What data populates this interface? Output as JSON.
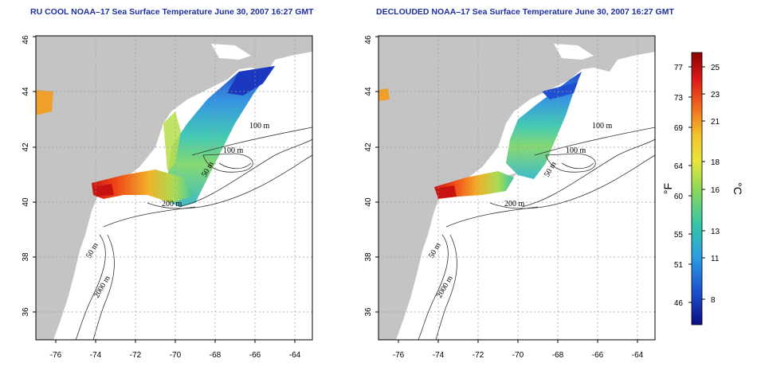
{
  "panels": [
    {
      "title": "RU COOL NOAA–17 Sea Surface Temperature June 30, 2007 16:27 GMT",
      "x_ticks": [
        "-76",
        "-74",
        "-72",
        "-70",
        "-68",
        "-66",
        "-64"
      ],
      "y_ticks": [
        "36",
        "38",
        "40",
        "42",
        "44",
        "46"
      ],
      "contour_labels": [
        "100 m",
        "100 m",
        "50 m",
        "200 m",
        "50 m",
        "2000 m"
      ],
      "variant": "cloud-masked"
    },
    {
      "title": "DECLOUDED NOAA–17 Sea Surface Temperature June 30, 2007 16:27 GMT",
      "x_ticks": [
        "-76",
        "-74",
        "-72",
        "-70",
        "-68",
        "-66",
        "-64"
      ],
      "y_ticks": [
        "36",
        "38",
        "40",
        "42",
        "44",
        "46"
      ],
      "contour_labels": [
        "100 m",
        "100 m",
        "50 m",
        "200 m",
        "50 m",
        "2000 m"
      ],
      "variant": "declouded"
    }
  ],
  "colorbar": {
    "fahrenheit_ticks": [
      "77",
      "73",
      "69",
      "64",
      "60",
      "55",
      "51",
      "46"
    ],
    "celsius_ticks": [
      "25",
      "23",
      "21",
      "18",
      "16",
      "13",
      "11",
      "8"
    ],
    "fahrenheit_label": "°F",
    "celsius_label": "°C",
    "colors": [
      "#8b0000",
      "#dd1a1a",
      "#f06a1e",
      "#f4c12a",
      "#e9e53b",
      "#8ed958",
      "#35c6a6",
      "#2a9fe2",
      "#1c4fcf",
      "#0c0d84"
    ]
  },
  "chart_data": {
    "type": "map",
    "x_range_deg": [
      -77,
      -63
    ],
    "y_range_deg": [
      35,
      46
    ],
    "x_label": "",
    "y_label": "",
    "colorbar_range_fahrenheit": [
      43,
      79
    ],
    "colorbar_range_celsius": [
      6,
      26
    ]
  }
}
